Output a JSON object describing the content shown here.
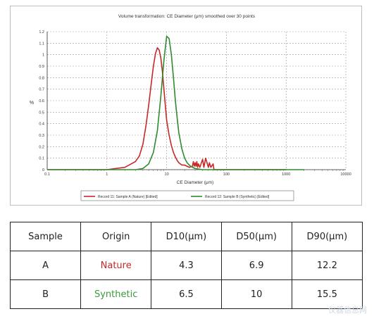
{
  "chart_data": {
    "type": "line",
    "title": "Volume transformation: CE Diameter (μm) smoothed over 30 points",
    "xlabel": "CE Diameter (μm)",
    "ylabel": "%",
    "xscale": "log",
    "xlim": [
      0.1,
      10000
    ],
    "ylim": [
      0,
      1.2
    ],
    "x_ticks": [
      "0.1",
      "1",
      "10",
      "100",
      "1000",
      "10000"
    ],
    "y_ticks": [
      "0",
      "0.1",
      "0.2",
      "0.3",
      "0.4",
      "0.5",
      "0.6",
      "0.7",
      "0.8",
      "0.9",
      "1",
      "1.1",
      "1.2"
    ],
    "grid": true,
    "legend_position": "bottom",
    "series": [
      {
        "name": "Record 11: Sample A (Nature) [Edited]",
        "color": "#c62828",
        "x": [
          0.1,
          1,
          2,
          3,
          3.5,
          4,
          4.5,
          5,
          5.5,
          6,
          6.5,
          7,
          7.5,
          8,
          8.5,
          9,
          9.5,
          10,
          11,
          12,
          13,
          14,
          15,
          16,
          18,
          20,
          24,
          27,
          28,
          29,
          30,
          31,
          32,
          33,
          34,
          36,
          40,
          42,
          45,
          50,
          52,
          55,
          60,
          62,
          100,
          1000
        ],
        "values": [
          0,
          0,
          0.02,
          0.07,
          0.12,
          0.22,
          0.38,
          0.56,
          0.74,
          0.9,
          1.01,
          1.06,
          1.04,
          0.97,
          0.85,
          0.7,
          0.56,
          0.43,
          0.3,
          0.21,
          0.15,
          0.11,
          0.08,
          0.06,
          0.04,
          0.04,
          0.02,
          0.03,
          0.07,
          0.03,
          0.06,
          0.03,
          0.07,
          0.02,
          0.05,
          0.02,
          0.09,
          0.02,
          0.1,
          0.02,
          0.06,
          0.02,
          0.05,
          0,
          0,
          0
        ]
      },
      {
        "name": "Record 12: Sample B (Synthetic) [Edited]",
        "color": "#2e8b2e",
        "x": [
          0.1,
          1,
          3,
          4,
          5,
          6,
          7,
          8,
          9,
          10,
          11,
          12,
          13,
          14,
          15,
          16,
          18,
          20,
          22,
          25,
          30,
          40,
          60,
          100,
          1000,
          2000
        ],
        "values": [
          0,
          0,
          0,
          0.01,
          0.05,
          0.15,
          0.34,
          0.64,
          0.95,
          1.16,
          1.14,
          1.0,
          0.8,
          0.6,
          0.45,
          0.32,
          0.18,
          0.1,
          0.06,
          0.03,
          0.01,
          0,
          0,
          0,
          0,
          0
        ]
      }
    ]
  },
  "table": {
    "headers": [
      "Sample",
      "Origin",
      "D10(μm)",
      "D50(μm)",
      "D90(μm)"
    ],
    "rows": [
      {
        "sample": "A",
        "origin": "Nature",
        "origin_color": "#c62828",
        "d10": "4.3",
        "d50": "6.9",
        "d90": "12.2"
      },
      {
        "sample": "B",
        "origin": "Synthetic",
        "origin_color": "#3a9a3a",
        "d10": "6.5",
        "d50": "10",
        "d90": "15.5"
      }
    ]
  },
  "watermark": "仪器信息网"
}
